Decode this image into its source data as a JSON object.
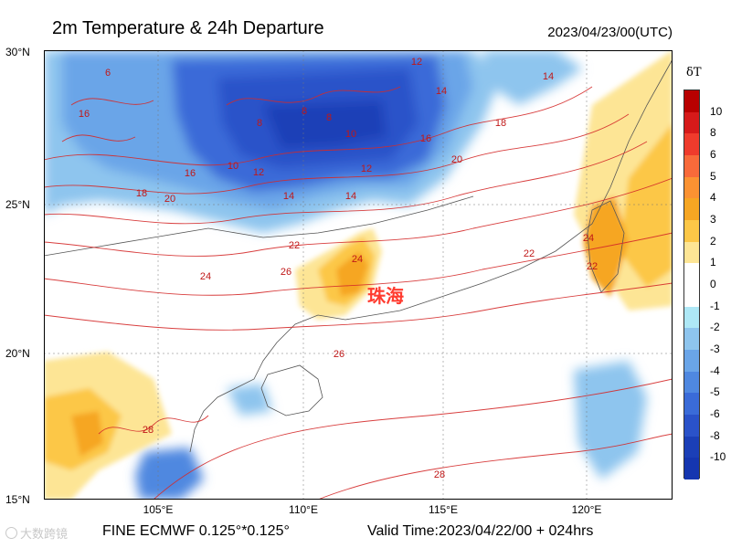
{
  "header": {
    "title": "2m Temperature & 24h Departure",
    "datetime": "2023/04/23/00(UTC)"
  },
  "axes": {
    "lat_labels": [
      "30°N",
      "25°N",
      "20°N",
      "15°N"
    ],
    "lon_labels": [
      "105°E",
      "110°E",
      "115°E",
      "120°E"
    ]
  },
  "colorbar": {
    "title": "δT",
    "labels": [
      "10",
      "8",
      "6",
      "5",
      "4",
      "3",
      "2",
      "1",
      "0",
      "-1",
      "-2",
      "-3",
      "-4",
      "-5",
      "-6",
      "-8",
      "-10"
    ],
    "colors": [
      "#b80000",
      "#d61a1a",
      "#ef3b2c",
      "#f86a3a",
      "#fb9232",
      "#f6a623",
      "#fcc747",
      "#fde595",
      "#ffffff",
      "#ffffff",
      "#aee8f6",
      "#8ec5ee",
      "#6aa5e8",
      "#4f88e0",
      "#3a6bd8",
      "#2a52c9",
      "#1b3fb7",
      "#1536b0"
    ]
  },
  "map": {
    "city_label": "珠海",
    "contour_labels": [
      "6",
      "8",
      "8",
      "8",
      "10",
      "10",
      "12",
      "12",
      "12",
      "14",
      "14",
      "14",
      "14",
      "16",
      "16",
      "16",
      "18",
      "18",
      "20",
      "20",
      "22",
      "22",
      "22",
      "24",
      "24",
      "24",
      "26",
      "26",
      "28",
      "28"
    ]
  },
  "footer": {
    "watermark": "大数跨镜",
    "model": "FINE ECMWF 0.125°*0.125°",
    "valid": "Valid Time:2023/04/22/00 + 024hrs"
  }
}
